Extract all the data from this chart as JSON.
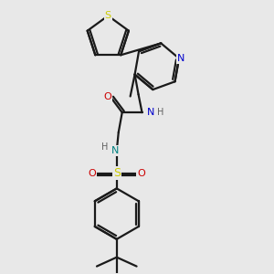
{
  "bg_color": "#e8e8e8",
  "bond_color": "#1a1a1a",
  "bond_width": 1.6,
  "atom_colors": {
    "S_thiophene": "#cccc00",
    "N_pyridine": "#0000cc",
    "N_amide": "#0000cc",
    "N_sulfonamide": "#008080",
    "O_carbonyl": "#cc0000",
    "O_sulfonyl": "#cc0000",
    "S_sulfonyl": "#cccc00",
    "C": "#1a1a1a",
    "H": "#606060"
  },
  "font_size": 7.0,
  "fig_size": [
    3.0,
    3.0
  ],
  "dpi": 100,
  "xlim": [
    0.3,
    2.7
  ],
  "ylim": [
    0.1,
    3.1
  ]
}
